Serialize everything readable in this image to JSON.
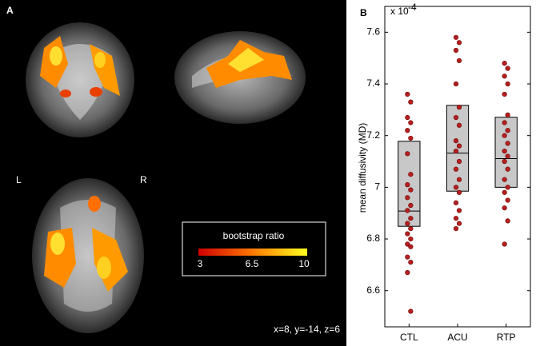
{
  "panel_a": {
    "label": "A",
    "left": "L",
    "right": "R",
    "coords": "x=8, y=-14, z=6",
    "colorbar": {
      "label": "bootstrap ratio",
      "lim": [
        3,
        10
      ],
      "ticks": [
        3,
        6.5,
        10
      ]
    }
  },
  "chart_data": {
    "type": "box",
    "label": "B",
    "multiplier": "x 10",
    "multiplier_exponent": "-4",
    "ylabel": "mean diffusivity (MD)",
    "categories": [
      "CTL",
      "ACU",
      "RTP"
    ],
    "ylim": [
      6.46,
      7.7
    ],
    "yticks": [
      6.6,
      6.8,
      {
        "value": 7,
        "label": "7"
      },
      7.2,
      7.4,
      7.6
    ],
    "box_color": "#c8c8c8",
    "point_color": "#b81f1f",
    "boxes": [
      {
        "q1": 6.849,
        "median": 6.908,
        "q3": 7.178
      },
      {
        "q1": 6.985,
        "median": 7.132,
        "q3": 7.317
      },
      {
        "q1": 7.0,
        "median": 7.111,
        "q3": 7.271
      }
    ],
    "points": [
      [
        7.36,
        7.33,
        7.27,
        7.25,
        7.22,
        7.19,
        7.13,
        7.05,
        7.01,
        6.99,
        6.96,
        6.93,
        6.91,
        6.88,
        6.86,
        6.84,
        6.82,
        6.8,
        6.78,
        6.77,
        6.73,
        6.71,
        6.67,
        6.52
      ],
      [
        7.58,
        7.56,
        7.53,
        7.49,
        7.4,
        7.31,
        7.27,
        7.24,
        7.18,
        7.16,
        7.14,
        7.1,
        7.07,
        7.03,
        7.0,
        6.98,
        6.94,
        6.91,
        6.88,
        6.86,
        6.84
      ],
      [
        7.48,
        7.46,
        7.43,
        7.4,
        7.36,
        7.28,
        7.25,
        7.22,
        7.2,
        7.17,
        7.14,
        7.12,
        7.1,
        7.07,
        7.03,
        7.0,
        6.98,
        6.95,
        6.92,
        6.87,
        6.78
      ]
    ]
  }
}
